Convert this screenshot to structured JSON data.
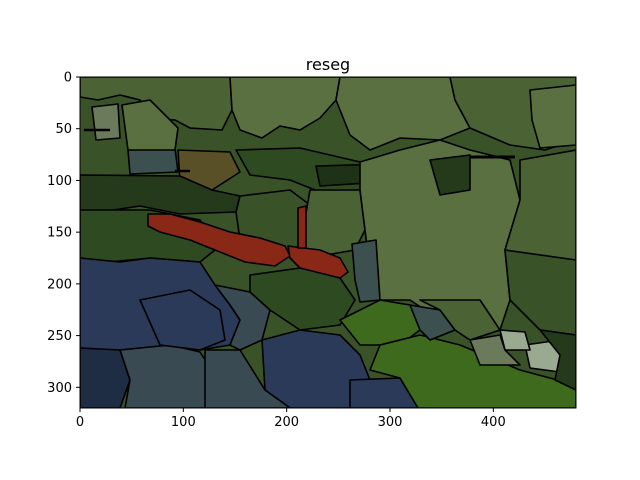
{
  "figure": {
    "title": "reseg",
    "x_ticks": [
      "0",
      "100",
      "200",
      "300",
      "400"
    ],
    "y_ticks": [
      "0",
      "50",
      "100",
      "150",
      "200",
      "250",
      "300"
    ]
  },
  "segment_colors": {
    "olive_light": "#5a7040",
    "olive_mid": "#4a6234",
    "olive_dark": "#3a5228",
    "forest": "#2e4a20",
    "deep_forest": "#243a1a",
    "navy": "#2a3a58",
    "navy_dark": "#1e2c44",
    "slate": "#3a4a52",
    "teal_gray": "#3c5050",
    "brown": "#5a5028",
    "red": "#8a2818",
    "bright_green": "#3e6a1e",
    "pale": "#9aaa90",
    "gray_green": "#6a7a5a"
  }
}
